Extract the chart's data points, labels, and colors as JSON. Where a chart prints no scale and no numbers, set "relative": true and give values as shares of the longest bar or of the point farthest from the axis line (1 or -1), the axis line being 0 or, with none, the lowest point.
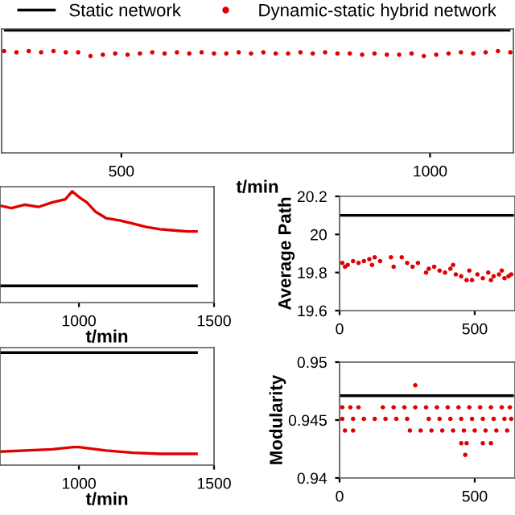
{
  "chart_data": [
    {
      "type": "line",
      "relative": true,
      "xlim": [
        306,
        1135
      ],
      "xticks": [
        500,
        1000
      ],
      "xlabel": "t/min",
      "legend": "top",
      "tick_labels": "x",
      "series": [
        {
          "name": "Static network",
          "color": "#000000",
          "x": [
            312,
            1128
          ],
          "values": [
            1,
            1
          ]
        },
        {
          "name": "Dynamic-static hybrid network",
          "color": "#e00000",
          "type": "scatter",
          "marker": "circle",
          "x": [
            310,
            330,
            350,
            370,
            390,
            410,
            430,
            450,
            470,
            490,
            510,
            530,
            550,
            570,
            590,
            610,
            630,
            650,
            670,
            690,
            710,
            730,
            750,
            770,
            790,
            810,
            830,
            850,
            870,
            890,
            910,
            930,
            950,
            970,
            990,
            1010,
            1030,
            1050,
            1070,
            1090,
            1110,
            1130
          ],
          "values": [
            0.83,
            0.82,
            0.83,
            0.82,
            0.83,
            0.82,
            0.82,
            0.79,
            0.8,
            0.81,
            0.8,
            0.81,
            0.82,
            0.81,
            0.82,
            0.81,
            0.82,
            0.81,
            0.81,
            0.82,
            0.81,
            0.82,
            0.81,
            0.81,
            0.82,
            0.81,
            0.82,
            0.81,
            0.81,
            0.8,
            0.81,
            0.8,
            0.8,
            0.81,
            0.79,
            0.8,
            0.81,
            0.82,
            0.81,
            0.82,
            0.83,
            0.82
          ]
        }
      ]
    },
    {
      "type": "line",
      "relative": true,
      "xlim": [
        708,
        1500
      ],
      "xticks": [
        1000,
        1500
      ],
      "xlabel": "t/min",
      "tick_labels": "x",
      "series": [
        {
          "color": "#000000",
          "x": [
            712,
            1435
          ],
          "values": [
            0.15,
            0.15
          ]
        },
        {
          "color": "#e00000",
          "x": [
            712,
            750,
            800,
            850,
            900,
            950,
            975,
            1000,
            1030,
            1060,
            1100,
            1150,
            1200,
            1250,
            1300,
            1350,
            1400,
            1435
          ],
          "values": [
            0.87,
            0.85,
            0.88,
            0.86,
            0.9,
            0.93,
            1.0,
            0.95,
            0.9,
            0.82,
            0.76,
            0.74,
            0.71,
            0.68,
            0.66,
            0.65,
            0.64,
            0.64
          ]
        }
      ]
    },
    {
      "type": "scatter",
      "xlim": [
        0,
        649
      ],
      "xticks": [
        0,
        500
      ],
      "ylim": [
        19.6,
        20.2
      ],
      "yticks": [
        19.6,
        19.8,
        20,
        20.2
      ],
      "ylabel": "Average Path",
      "series": [
        {
          "color": "#000000",
          "type": "line",
          "x": [
            4,
            640
          ],
          "values": [
            20.1,
            20.1
          ]
        },
        {
          "color": "#e00000",
          "marker": "circle",
          "x": [
            10,
            20,
            30,
            50,
            70,
            90,
            110,
            120,
            130,
            150,
            190,
            200,
            230,
            250,
            270,
            290,
            320,
            330,
            350,
            370,
            390,
            410,
            420,
            430,
            450,
            470,
            480,
            490,
            510,
            530,
            550,
            560,
            570,
            590,
            600,
            610,
            625,
            635
          ],
          "values": [
            19.85,
            19.83,
            19.84,
            19.86,
            19.85,
            19.86,
            19.87,
            19.84,
            19.88,
            19.86,
            19.88,
            19.83,
            19.88,
            19.85,
            19.83,
            19.85,
            19.8,
            19.82,
            19.83,
            19.81,
            19.8,
            19.82,
            19.84,
            19.79,
            19.78,
            19.76,
            19.81,
            19.76,
            19.79,
            19.77,
            19.8,
            19.76,
            19.78,
            19.79,
            19.81,
            19.77,
            19.78,
            19.79
          ]
        }
      ]
    },
    {
      "type": "line",
      "relative": true,
      "xlim": [
        708,
        1500
      ],
      "xticks": [
        1000,
        1500
      ],
      "xlabel": "t/min",
      "tick_labels": "x",
      "series": [
        {
          "color": "#000000",
          "x": [
            712,
            1435
          ],
          "values": [
            1,
            1
          ]
        },
        {
          "color": "#e00000",
          "x": [
            712,
            800,
            900,
            980,
            1000,
            1100,
            1200,
            1300,
            1435
          ],
          "values": [
            0.12,
            0.13,
            0.14,
            0.16,
            0.16,
            0.13,
            0.11,
            0.1,
            0.1
          ]
        }
      ]
    },
    {
      "type": "scatter",
      "xlim": [
        0,
        649
      ],
      "xticks": [
        0,
        500
      ],
      "ylim": [
        0.94,
        0.95
      ],
      "yticks": [
        0.94,
        0.945,
        0.95
      ],
      "ylabel": "Modularity",
      "series": [
        {
          "color": "#000000",
          "type": "line",
          "x": [
            4,
            640
          ],
          "values": [
            0.9471,
            0.9471
          ]
        },
        {
          "color": "#e00000",
          "marker": "circle",
          "x": [
            10,
            40,
            70,
            160,
            200,
            240,
            280,
            320,
            360,
            400,
            440,
            480,
            520,
            560,
            600,
            630,
            10,
            50,
            90,
            130,
            170,
            210,
            250,
            330,
            370,
            410,
            450,
            490,
            530,
            570,
            610,
            635,
            20,
            50,
            260,
            300,
            340,
            380,
            420,
            460,
            500,
            540,
            580,
            620,
            450,
            470,
            530,
            560,
            465,
            280
          ],
          "values": [
            0.9461,
            0.9461,
            0.9461,
            0.9461,
            0.9461,
            0.9461,
            0.9461,
            0.9461,
            0.9461,
            0.9461,
            0.9461,
            0.9461,
            0.9461,
            0.9461,
            0.9461,
            0.9461,
            0.9451,
            0.9451,
            0.9451,
            0.9451,
            0.9451,
            0.9451,
            0.9451,
            0.9451,
            0.9451,
            0.9451,
            0.9451,
            0.9451,
            0.9451,
            0.9451,
            0.9451,
            0.9451,
            0.9441,
            0.9441,
            0.9441,
            0.9441,
            0.9441,
            0.9441,
            0.9441,
            0.9441,
            0.9441,
            0.9441,
            0.9441,
            0.9441,
            0.943,
            0.943,
            0.943,
            0.943,
            0.942,
            0.948
          ]
        }
      ]
    }
  ]
}
